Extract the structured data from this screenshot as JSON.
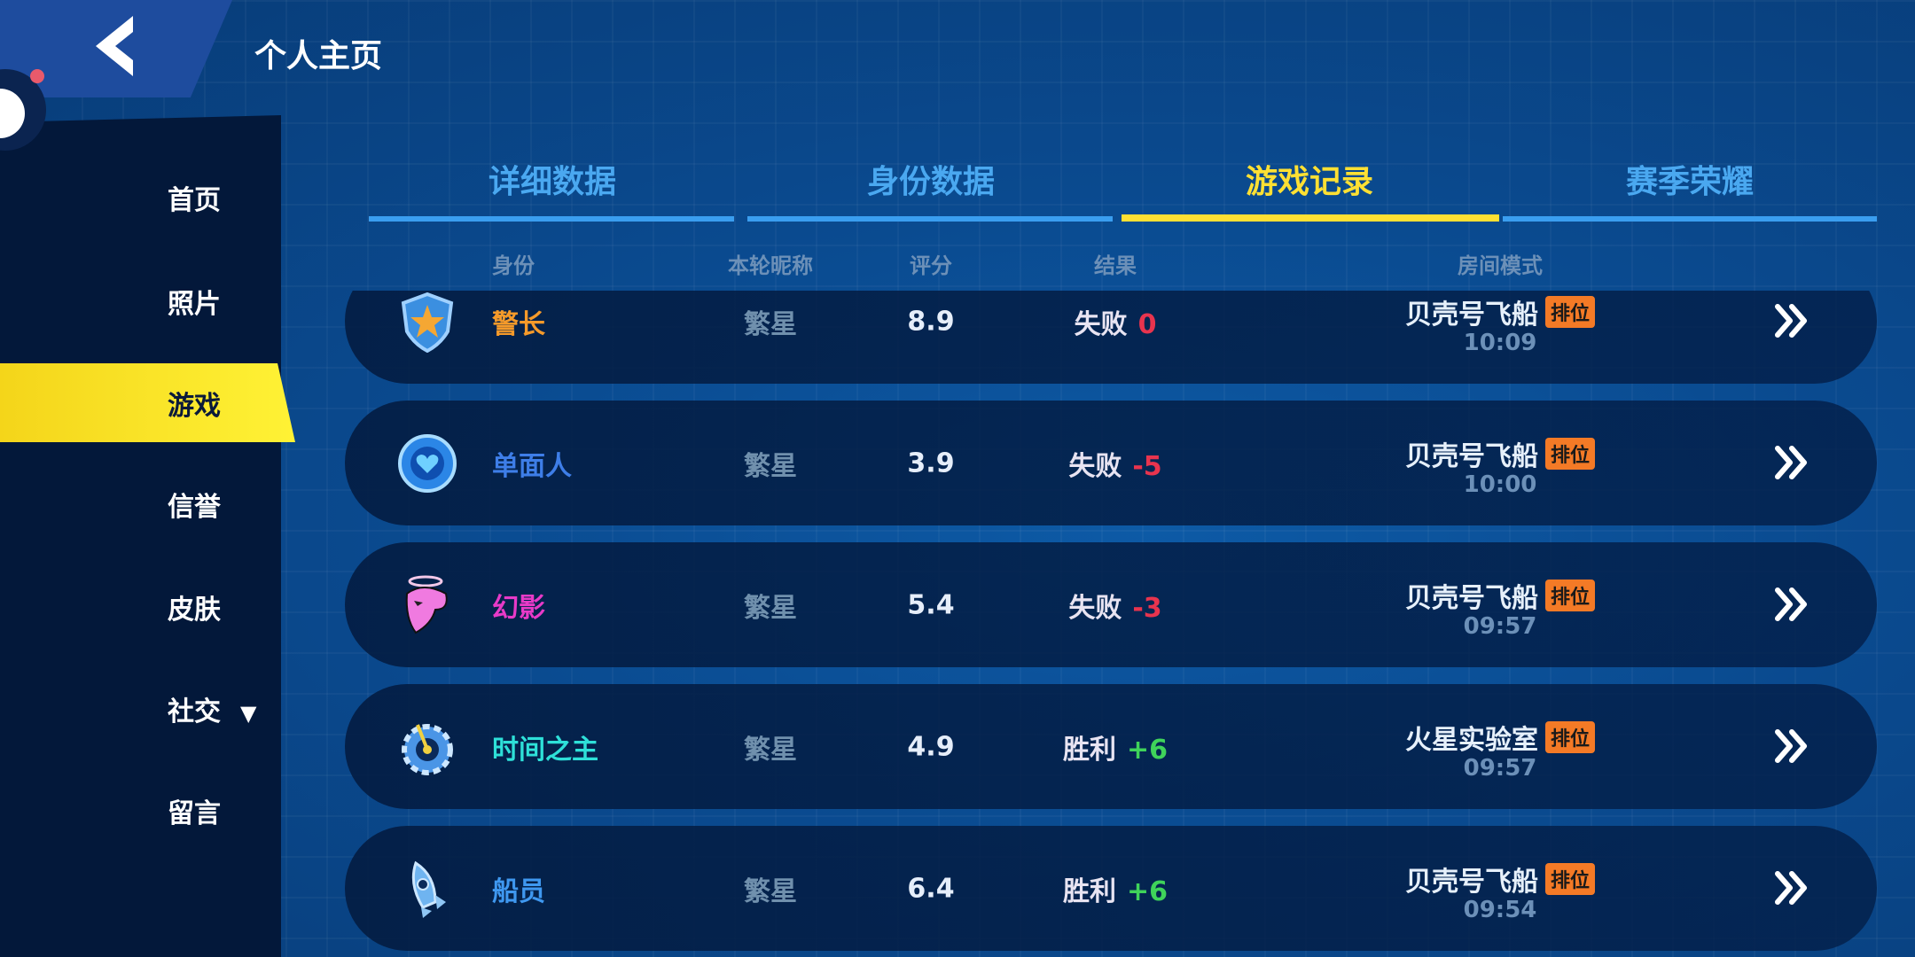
{
  "header": {
    "title": "个人主页"
  },
  "sidebar": {
    "items": [
      {
        "label": "首页"
      },
      {
        "label": "照片"
      },
      {
        "label": "游戏",
        "active": true
      },
      {
        "label": "信誉"
      },
      {
        "label": "皮肤"
      },
      {
        "label": "社交",
        "caret": "▼"
      },
      {
        "label": "留言"
      }
    ]
  },
  "tabs": [
    {
      "label": "详细数据"
    },
    {
      "label": "身份数据"
    },
    {
      "label": "游戏记录",
      "active": true
    },
    {
      "label": "赛季荣耀"
    }
  ],
  "columns": [
    "身份",
    "本轮昵称",
    "评分",
    "结果",
    "房间模式"
  ],
  "colors": {
    "accent": "#ffe033",
    "tab": "#4aa8f0",
    "loss": "#e8344e",
    "win": "#3fd35a",
    "tag": "#f47a26"
  },
  "rows": [
    {
      "icon": "sheriff-badge-icon",
      "role": "警长",
      "role_color": "#f59a2a",
      "nick": "繁星",
      "score": "8.9",
      "result": "失败",
      "delta": "0",
      "outcome": "loss",
      "room": "贝壳号飞船",
      "tag": "排位",
      "time": "10:09"
    },
    {
      "icon": "heart-chip-icon",
      "role": "单面人",
      "role_color": "#3e7ee8",
      "nick": "繁星",
      "score": "3.9",
      "result": "失败",
      "delta": "-5",
      "outcome": "loss",
      "room": "贝壳号飞船",
      "tag": "排位",
      "time": "10:00"
    },
    {
      "icon": "phantom-mask-icon",
      "role": "幻影",
      "role_color": "#e83ac8",
      "nick": "繁星",
      "score": "5.4",
      "result": "失败",
      "delta": "-3",
      "outcome": "loss",
      "room": "贝壳号飞船",
      "tag": "排位",
      "time": "09:57"
    },
    {
      "icon": "time-gear-icon",
      "role": "时间之主",
      "role_color": "#2ee0d8",
      "nick": "繁星",
      "score": "4.9",
      "result": "胜利",
      "delta": "+6",
      "outcome": "win",
      "room": "火星实验室",
      "tag": "排位",
      "time": "09:57"
    },
    {
      "icon": "rocket-icon",
      "role": "船员",
      "role_color": "#3f98f0",
      "nick": "繁星",
      "score": "6.4",
      "result": "胜利",
      "delta": "+6",
      "outcome": "win",
      "room": "贝壳号飞船",
      "tag": "排位",
      "time": "09:54"
    }
  ]
}
